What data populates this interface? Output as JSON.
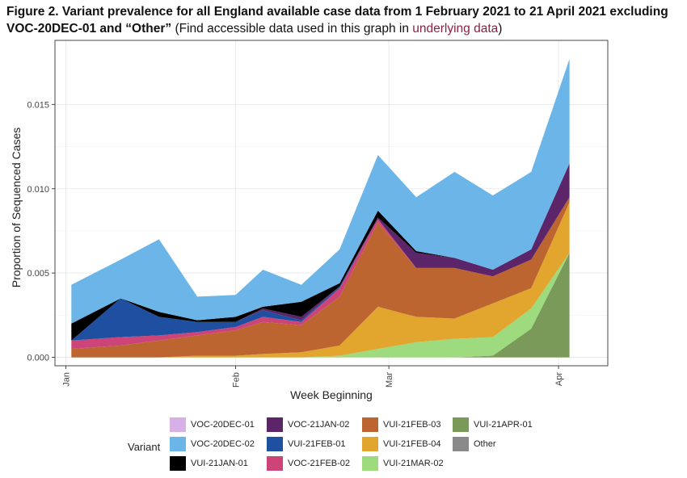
{
  "title": {
    "bold_text": "Figure 2. Variant prevalence for all England available case data from 1 February 2021 to 21 April 2021 excluding VOC-20DEC-01 and “Other”",
    "paren_open": " (Find accessible data used in this graph in ",
    "link_text": "underlying data",
    "paren_close": ")"
  },
  "legend": {
    "title": "Variant",
    "items": [
      {
        "name": "VOC-20DEC-01",
        "color": "#d6b0e6"
      },
      {
        "name": "VOC-20DEC-02",
        "color": "#6bb5e8"
      },
      {
        "name": "VUI-21JAN-01",
        "color": "#000000"
      },
      {
        "name": "VOC-21JAN-02",
        "color": "#5c2469"
      },
      {
        "name": "VUI-21FEB-01",
        "color": "#1f4fa0"
      },
      {
        "name": "VOC-21FEB-02",
        "color": "#cc4478"
      },
      {
        "name": "VUI-21FEB-03",
        "color": "#bd6530"
      },
      {
        "name": "VUI-21FEB-04",
        "color": "#e2a52e"
      },
      {
        "name": "VUI-21MAR-02",
        "color": "#9edb7e"
      },
      {
        "name": "VUI-21APR-01",
        "color": "#7a9a59"
      },
      {
        "name": "Other",
        "color": "#8a8a8a"
      }
    ]
  },
  "chart_data": {
    "type": "area",
    "stacked": true,
    "xlabel": "Week Beginning",
    "ylabel": "Proportion of Sequenced Cases",
    "x_ticks": [
      {
        "label": "Jan",
        "date": "2021-01-01"
      },
      {
        "label": "Feb",
        "date": "2021-02-01"
      },
      {
        "label": "Mar",
        "date": "2021-03-01"
      },
      {
        "label": "Apr",
        "date": "2021-04-01"
      }
    ],
    "y_ticks": [
      0.0,
      0.005,
      0.01,
      0.015
    ],
    "y_tick_labels": [
      "0.000",
      "0.005",
      "0.010",
      "0.015"
    ],
    "xlim": [
      "2020-12-30",
      "2021-04-10"
    ],
    "ylim": [
      -0.0005,
      0.0188
    ],
    "grid": true,
    "legend_position": "bottom",
    "x": [
      "2021-01-02",
      "2021-01-11",
      "2021-01-18",
      "2021-01-25",
      "2021-02-01",
      "2021-02-06",
      "2021-02-13",
      "2021-02-20",
      "2021-02-27",
      "2021-03-06",
      "2021-03-13",
      "2021-03-20",
      "2021-03-27",
      "2021-04-03"
    ],
    "series": [
      {
        "name": "VUI-21APR-01",
        "color": "#7a9a59",
        "values": [
          0,
          0,
          0,
          0,
          0,
          0,
          0,
          0,
          0,
          0,
          0,
          0.0001,
          0.0017,
          0.0062
        ]
      },
      {
        "name": "VUI-21MAR-02",
        "color": "#9edb7e",
        "values": [
          0,
          0,
          0,
          0,
          0,
          0,
          0,
          0.0001,
          0.0005,
          0.0009,
          0.0011,
          0.0011,
          0.0012,
          0
        ]
      },
      {
        "name": "VUI-21FEB-04",
        "color": "#e2a52e",
        "values": [
          0,
          0,
          0,
          0.0001,
          0.0001,
          0.0002,
          0.0003,
          0.0006,
          0.0025,
          0.0015,
          0.0012,
          0.002,
          0.0012,
          0.003
        ]
      },
      {
        "name": "VUI-21FEB-03",
        "color": "#bd6530",
        "values": [
          0.0005,
          0.0007,
          0.001,
          0.0012,
          0.0015,
          0.0019,
          0.0016,
          0.0029,
          0.005,
          0.0029,
          0.003,
          0.0016,
          0.0017,
          0.0003
        ]
      },
      {
        "name": "VOC-21FEB-02",
        "color": "#cc4478",
        "values": [
          0.0005,
          0.0005,
          0.0003,
          0.0002,
          0.0002,
          0.0003,
          0.0002,
          0.0005,
          0.0002,
          0,
          0,
          0,
          0,
          0
        ]
      },
      {
        "name": "VUI-21FEB-01",
        "color": "#1f4fa0",
        "values": [
          0,
          0.0023,
          0.0011,
          0.0006,
          0.0003,
          0.0004,
          0.0001,
          0.0001,
          0,
          0,
          0,
          0,
          0,
          0
        ]
      },
      {
        "name": "VOC-21JAN-02",
        "color": "#5c2469",
        "values": [
          0,
          0,
          0,
          0,
          0,
          0.0001,
          0.0002,
          0,
          0.0001,
          0.0009,
          0.0006,
          0.0004,
          0.0006,
          0.002
        ]
      },
      {
        "name": "VUI-21JAN-01",
        "color": "#000000",
        "values": [
          0.001,
          0,
          0.0003,
          0.0001,
          0.0003,
          0.0001,
          0.0009,
          0.0002,
          0.0004,
          0.0001,
          0,
          0,
          0,
          0
        ]
      },
      {
        "name": "VOC-20DEC-02",
        "color": "#6bb5e8",
        "values": [
          0.0023,
          0.0023,
          0.0043,
          0.0014,
          0.0013,
          0.0022,
          0.001,
          0.002,
          0.0033,
          0.0032,
          0.0051,
          0.0044,
          0.0046,
          0.0062
        ]
      }
    ]
  }
}
